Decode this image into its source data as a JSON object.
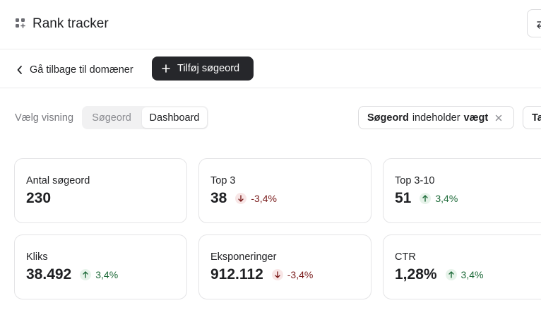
{
  "header": {
    "title": "Rank tracker",
    "app_icon": "grid-plus-icon",
    "right_button_icon": "swap-icon"
  },
  "toolbar": {
    "back_label": "Gå tilbage til domæner",
    "add_keyword_label": "Tilføj søgeord"
  },
  "view": {
    "label": "Vælg visning",
    "options": [
      "Søgeord",
      "Dashboard"
    ],
    "selected": "Dashboard"
  },
  "filters": {
    "chip1": {
      "field": "Søgeord",
      "operator": "indeholder",
      "value": "vægt"
    },
    "chip2_label": "Ta"
  },
  "colors": {
    "up": "#1f6b3a",
    "down": "#7a1d1d",
    "primary": "#26272b"
  },
  "metrics": [
    {
      "label": "Antal søgeord",
      "value": "230",
      "change": "",
      "direction": "none"
    },
    {
      "label": "Top 3",
      "value": "38",
      "change": "-3,4%",
      "direction": "down"
    },
    {
      "label": "Top 3-10",
      "value": "51",
      "change": "3,4%",
      "direction": "up"
    },
    {
      "label": "Kliks",
      "value": "38.492",
      "change": "3,4%",
      "direction": "up"
    },
    {
      "label": "Eksponeringer",
      "value": "912.112",
      "change": "-3,4%",
      "direction": "down"
    },
    {
      "label": "CTR",
      "value": "1,28%",
      "change": "3,4%",
      "direction": "up"
    }
  ]
}
